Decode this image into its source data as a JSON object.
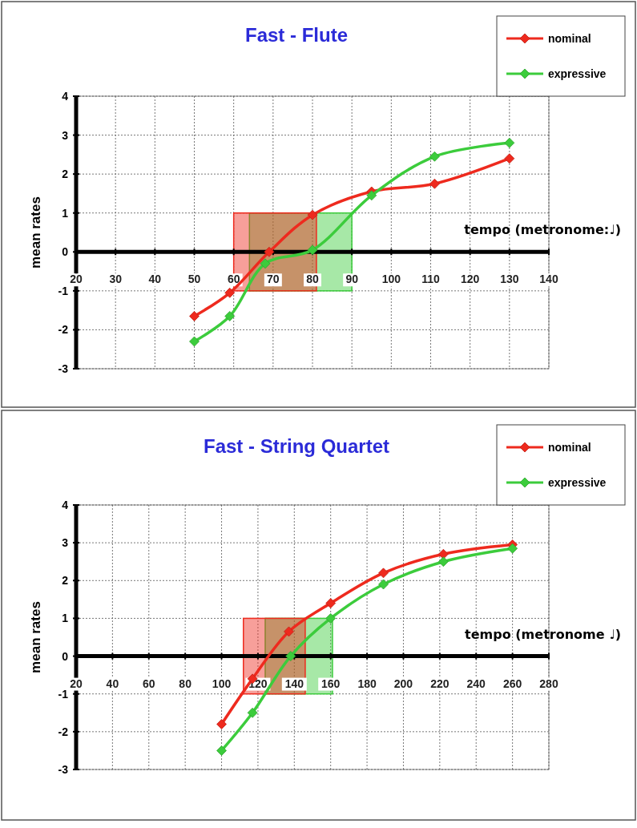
{
  "chart_data": [
    {
      "type": "line",
      "title": "Fast - Flute",
      "xlabel": "tempo (metronome:♩)",
      "ylabel": "mean rates",
      "xlim": [
        20,
        140
      ],
      "xticks": [
        20,
        30,
        40,
        50,
        60,
        70,
        80,
        90,
        100,
        110,
        120,
        130,
        140
      ],
      "ylim": [
        -3,
        4
      ],
      "yticks": [
        -3,
        -2,
        -1,
        0,
        1,
        2,
        3,
        4
      ],
      "grid": true,
      "legend": "top right",
      "marker": "diamond",
      "line_style": "solid",
      "series": [
        {
          "name": "nominal",
          "color": "#ee2a1e",
          "x": [
            50,
            59,
            69,
            80,
            95,
            111,
            130
          ],
          "values": [
            -1.65,
            -1.05,
            0,
            0.95,
            1.55,
            1.75,
            2.4
          ]
        },
        {
          "name": "expressive",
          "color": "#3ccc3c",
          "x": [
            50,
            59,
            68,
            80,
            95,
            111,
            130
          ],
          "values": [
            -2.3,
            -1.65,
            -0.3,
            0.05,
            1.45,
            2.45,
            2.8
          ]
        }
      ],
      "bands": [
        {
          "axis": "x",
          "from": 64,
          "to": 90,
          "color": "#3ccc3c"
        },
        {
          "axis": "x",
          "from": 60,
          "to": 81,
          "color": "#ee2a1e"
        }
      ]
    },
    {
      "type": "line",
      "title": "Fast - String Quartet",
      "xlabel": "tempo (metronome ♩)",
      "ylabel": "mean rates",
      "xlim": [
        20,
        280
      ],
      "xticks": [
        20,
        40,
        60,
        80,
        100,
        120,
        140,
        160,
        180,
        200,
        220,
        240,
        260,
        280
      ],
      "ylim": [
        -3,
        4
      ],
      "yticks": [
        -3,
        -2,
        -1,
        0,
        1,
        2,
        3,
        4
      ],
      "grid": true,
      "legend": "top right",
      "marker": "diamond",
      "line_style": "solid",
      "series": [
        {
          "name": "nominal",
          "color": "#ee2a1e",
          "x": [
            100,
            117,
            137,
            160,
            189,
            222,
            260
          ],
          "values": [
            -1.8,
            -0.6,
            0.65,
            1.4,
            2.2,
            2.7,
            2.95
          ]
        },
        {
          "name": "expressive",
          "color": "#3ccc3c",
          "x": [
            100,
            117,
            138,
            160,
            189,
            222,
            260
          ],
          "values": [
            -2.5,
            -1.5,
            0,
            1.0,
            1.9,
            2.5,
            2.85
          ]
        }
      ],
      "bands": [
        {
          "axis": "x",
          "from": 124,
          "to": 161,
          "color": "#3ccc3c"
        },
        {
          "axis": "x",
          "from": 112,
          "to": 146,
          "color": "#ee2a1e"
        }
      ]
    }
  ]
}
